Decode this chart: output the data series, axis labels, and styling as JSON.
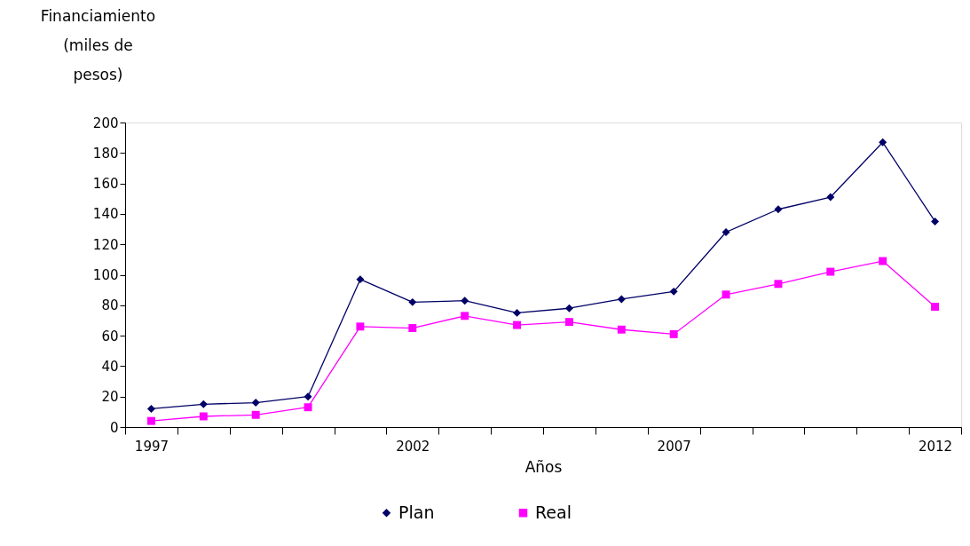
{
  "chart_data": {
    "type": "line",
    "xlabel": "Años",
    "ylabel": "Financiamiento (miles de pesos)",
    "categories": [
      "1997",
      null,
      null,
      null,
      null,
      "2002",
      null,
      null,
      null,
      null,
      "2007",
      null,
      null,
      null,
      null,
      "2012"
    ],
    "series": [
      {
        "name": "Plan",
        "color": "#000066",
        "marker": "diamond",
        "values": [
          12,
          15,
          16,
          20,
          97,
          82,
          83,
          75,
          78,
          84,
          89,
          128,
          143,
          151,
          187,
          135
        ]
      },
      {
        "name": "Real",
        "color": "#ff00ff",
        "marker": "square",
        "values": [
          4,
          7,
          8,
          13,
          66,
          65,
          73,
          67,
          69,
          64,
          61,
          87,
          94,
          102,
          109,
          79
        ]
      }
    ],
    "ylim": [
      0,
      200
    ],
    "yticks": [
      0,
      20,
      40,
      60,
      80,
      100,
      120,
      140,
      160,
      180,
      200
    ],
    "grid": false,
    "legend": "bottom",
    "line_style": "solid"
  }
}
